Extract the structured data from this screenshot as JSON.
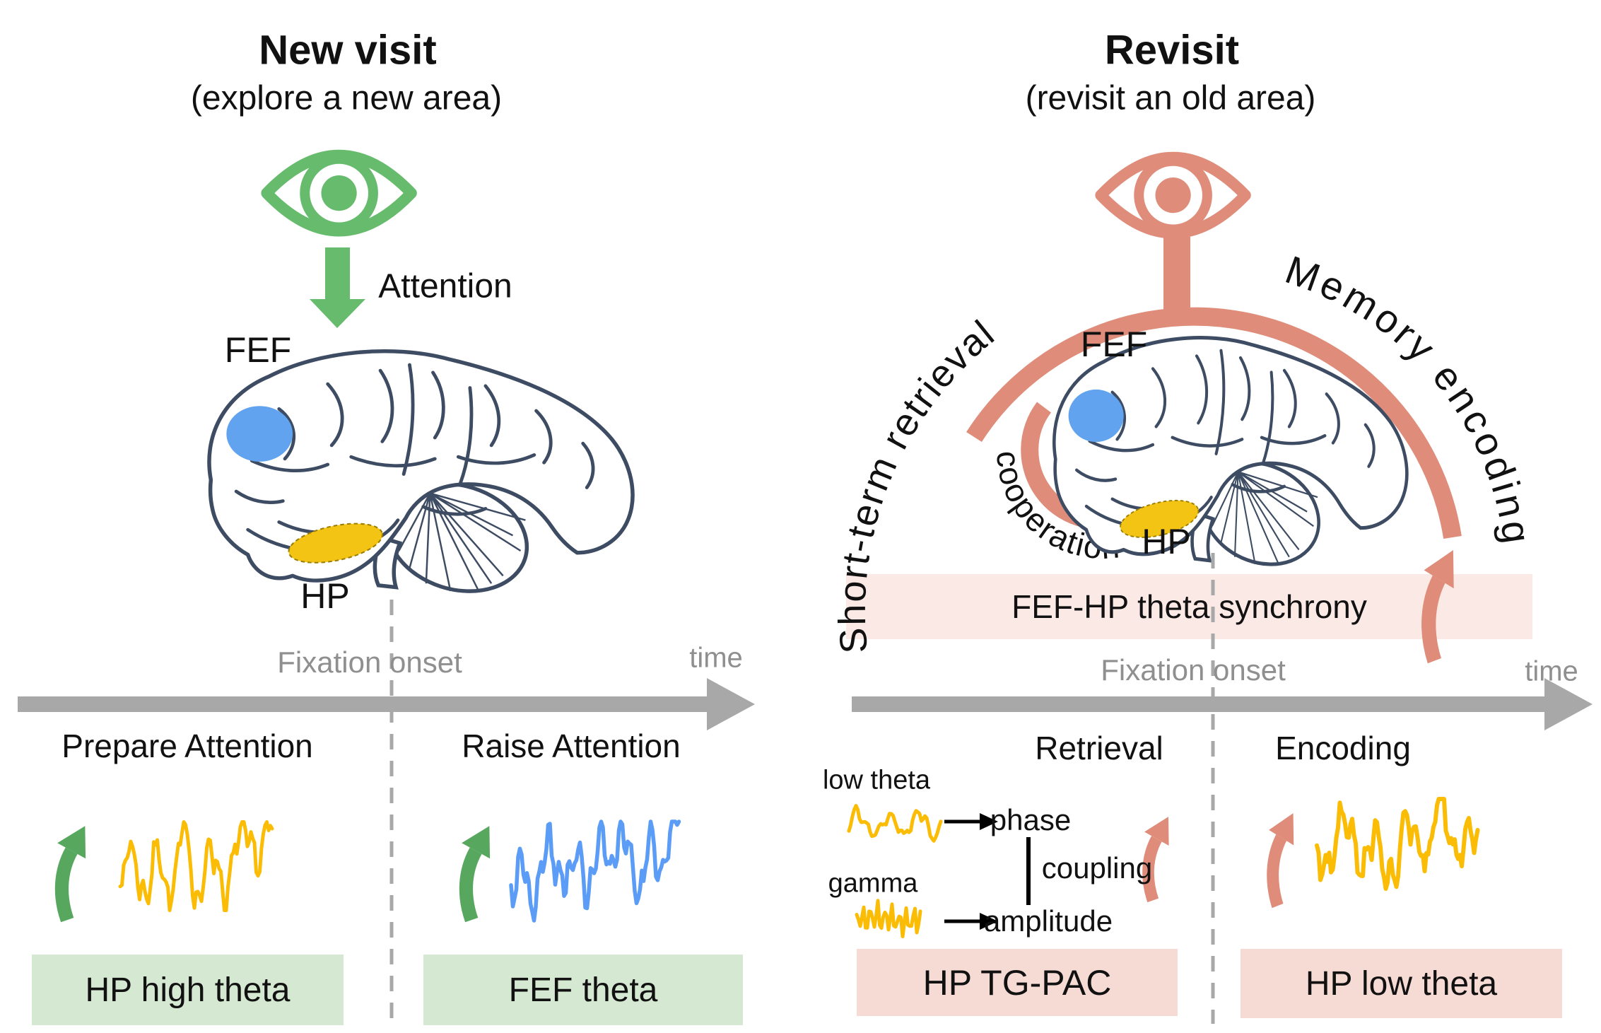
{
  "left": {
    "title": "New visit",
    "subtitle": "(explore a new area)",
    "attention_label": "Attention",
    "fef_label": "FEF",
    "hp_label": "HP",
    "fixation_onset_label": "Fixation onset",
    "time_label": "time",
    "pre_fixation_label": "Prepare Attention",
    "post_fixation_label": "Raise Attention",
    "pre_box_label": "HP high theta",
    "post_box_label": "FEF theta"
  },
  "right": {
    "title": "Revisit",
    "subtitle": "(revisit an old area)",
    "arc_left_label": "Short-term retrieval",
    "arc_right_label": "Memory encoding",
    "cooperation_label": "cooperation",
    "fef_label": "FEF",
    "hp_label": "HP",
    "synchrony_bar_label": "FEF-HP theta synchrony",
    "fixation_onset_label": "Fixation onset",
    "time_label": "time",
    "pre_fixation_label": "Retrieval",
    "post_fixation_label": "Encoding",
    "low_theta_label": "low theta",
    "gamma_label": "gamma",
    "phase_label": "phase",
    "coupling_label": "coupling",
    "amplitude_label": "amplitude",
    "pre_box_label": "HP TG-PAC",
    "post_box_label": "HP low theta"
  },
  "colors": {
    "green": "#66bb6c",
    "green_dark": "#57a75f",
    "salmon": "#df8d7a",
    "green_box_bg": "#d5e8d1",
    "pink_box_bg": "#f6dbd5",
    "pink_bar_bg": "#fbe9e6",
    "fef_dot": "#61a3ef",
    "hp_dot": "#f4c415",
    "wave_yellow": "#fbbc05",
    "wave_blue": "#5b9cf6",
    "brain_line": "#3d4c63",
    "timeline_gray": "#a8a8a8",
    "label_gray": "#8f8f8f"
  }
}
